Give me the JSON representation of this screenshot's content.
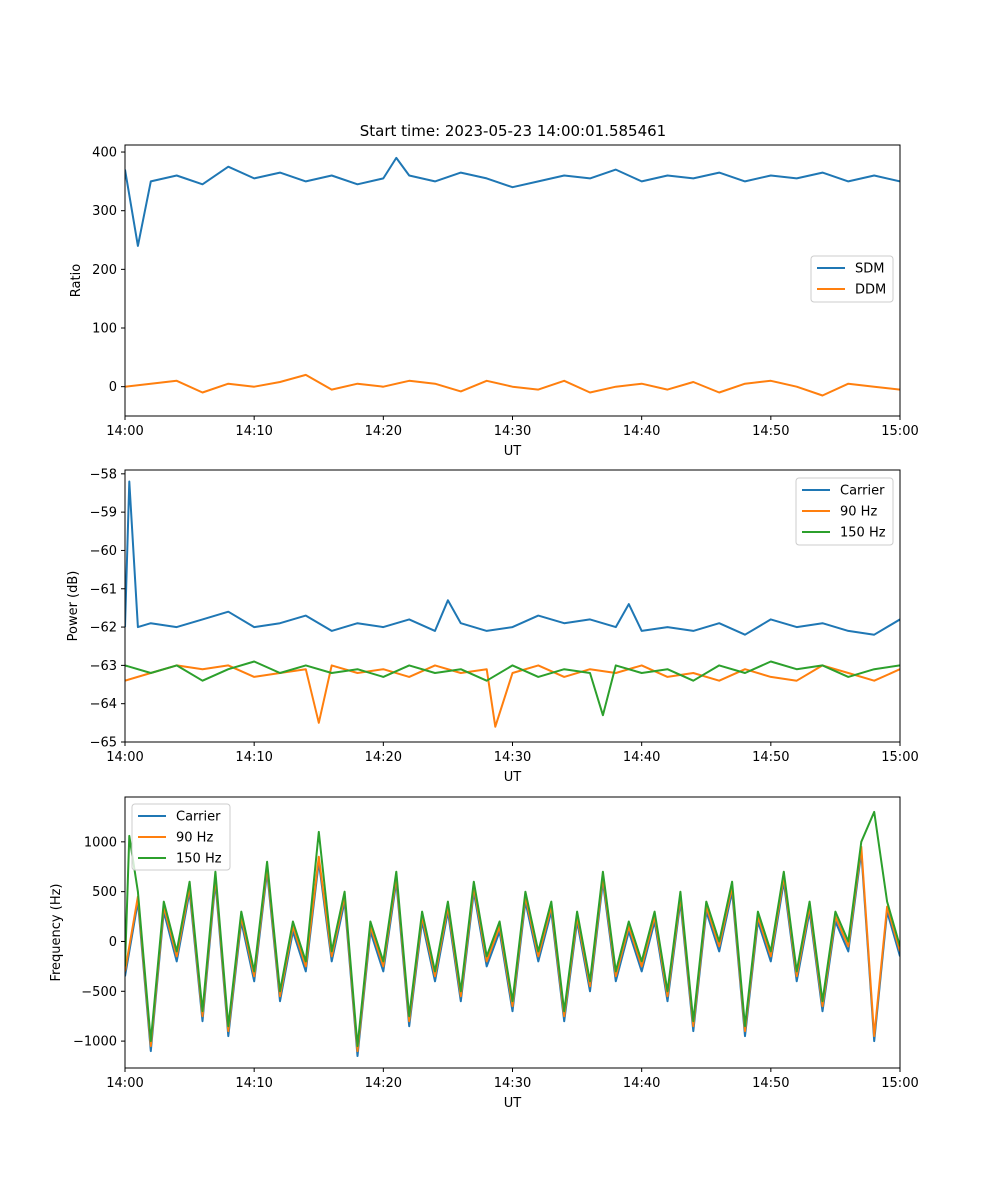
{
  "figure": {
    "title": "Start time: 2023-05-23 14:00:01.585461"
  },
  "colors": {
    "blue": "#1f77b4",
    "orange": "#ff7f0e",
    "green": "#2ca02c"
  },
  "chart_data": [
    {
      "type": "line",
      "title": "Start time: 2023-05-23 14:00:01.585461",
      "xlabel": "UT",
      "ylabel": "Ratio",
      "xlim": [
        "14:00",
        "15:00"
      ],
      "ylim": [
        -50,
        412
      ],
      "xticks": [
        "14:00",
        "14:10",
        "14:20",
        "14:30",
        "14:40",
        "14:50",
        "15:00"
      ],
      "yticks": [
        0,
        100,
        200,
        300,
        400
      ],
      "yticklabels": [
        "0",
        "100",
        "200",
        "300",
        "400"
      ],
      "legend": "center-right",
      "series": [
        {
          "name": "SDM",
          "color": "#1f77b4",
          "x": [
            "14:00",
            "14:01",
            "14:02",
            "14:04",
            "14:06",
            "14:08",
            "14:10",
            "14:12",
            "14:14",
            "14:16",
            "14:18",
            "14:20",
            "14:21",
            "14:22",
            "14:24",
            "14:26",
            "14:28",
            "14:30",
            "14:32",
            "14:34",
            "14:36",
            "14:38",
            "14:40",
            "14:42",
            "14:44",
            "14:46",
            "14:48",
            "14:50",
            "14:52",
            "14:54",
            "14:56",
            "14:58",
            "15:00"
          ],
          "values": [
            370,
            240,
            350,
            360,
            345,
            375,
            355,
            365,
            350,
            360,
            345,
            355,
            390,
            360,
            350,
            365,
            355,
            340,
            350,
            360,
            355,
            370,
            350,
            360,
            355,
            365,
            350,
            360,
            355,
            365,
            350,
            360,
            350
          ]
        },
        {
          "name": "DDM",
          "color": "#ff7f0e",
          "x": [
            "14:00",
            "14:02",
            "14:04",
            "14:06",
            "14:08",
            "14:10",
            "14:12",
            "14:14",
            "14:16",
            "14:18",
            "14:20",
            "14:22",
            "14:24",
            "14:26",
            "14:28",
            "14:30",
            "14:32",
            "14:34",
            "14:36",
            "14:38",
            "14:40",
            "14:42",
            "14:44",
            "14:46",
            "14:48",
            "14:50",
            "14:52",
            "14:54",
            "14:56",
            "14:58",
            "15:00"
          ],
          "values": [
            0,
            5,
            10,
            -10,
            5,
            0,
            8,
            20,
            -5,
            5,
            0,
            10,
            5,
            -8,
            10,
            0,
            -5,
            10,
            -10,
            0,
            5,
            -5,
            8,
            -10,
            5,
            10,
            0,
            -15,
            5,
            0,
            -5
          ]
        }
      ]
    },
    {
      "type": "line",
      "title": "",
      "xlabel": "UT",
      "ylabel": "Power (dB)",
      "xlim": [
        "14:00",
        "15:00"
      ],
      "ylim": [
        -65,
        -57.9
      ],
      "xticks": [
        "14:00",
        "14:10",
        "14:20",
        "14:30",
        "14:40",
        "14:50",
        "15:00"
      ],
      "yticks": [
        -65,
        -64,
        -63,
        -62,
        -61,
        -60,
        -59,
        -58
      ],
      "yticklabels": [
        "−65",
        "−64",
        "−63",
        "−62",
        "−61",
        "−60",
        "−59",
        "−58"
      ],
      "legend": "top-right",
      "series": [
        {
          "name": "Carrier",
          "color": "#1f77b4",
          "x": [
            "14:00",
            "14:00:20",
            "14:01",
            "14:02",
            "14:04",
            "14:06",
            "14:08",
            "14:10",
            "14:12",
            "14:14",
            "14:16",
            "14:18",
            "14:20",
            "14:22",
            "14:24",
            "14:25",
            "14:26",
            "14:28",
            "14:30",
            "14:32",
            "14:34",
            "14:36",
            "14:38",
            "14:39",
            "14:40",
            "14:42",
            "14:44",
            "14:46",
            "14:48",
            "14:50",
            "14:52",
            "14:54",
            "14:56",
            "14:58",
            "15:00"
          ],
          "values": [
            -62.0,
            -58.2,
            -62.0,
            -61.9,
            -62.0,
            -61.8,
            -61.6,
            -62.0,
            -61.9,
            -61.7,
            -62.1,
            -61.9,
            -62.0,
            -61.8,
            -62.1,
            -61.3,
            -61.9,
            -62.1,
            -62.0,
            -61.7,
            -61.9,
            -61.8,
            -62.0,
            -61.4,
            -62.1,
            -62.0,
            -62.1,
            -61.9,
            -62.2,
            -61.8,
            -62.0,
            -61.9,
            -62.1,
            -62.2,
            -61.8
          ]
        },
        {
          "name": "90 Hz",
          "color": "#ff7f0e",
          "x": [
            "14:00",
            "14:02",
            "14:04",
            "14:06",
            "14:08",
            "14:10",
            "14:12",
            "14:14",
            "14:15",
            "14:16",
            "14:18",
            "14:20",
            "14:22",
            "14:24",
            "14:26",
            "14:28",
            "14:28:40",
            "14:30",
            "14:32",
            "14:34",
            "14:36",
            "14:38",
            "14:40",
            "14:42",
            "14:44",
            "14:46",
            "14:48",
            "14:50",
            "14:52",
            "14:54",
            "14:56",
            "14:58",
            "15:00"
          ],
          "values": [
            -63.4,
            -63.2,
            -63.0,
            -63.1,
            -63.0,
            -63.3,
            -63.2,
            -63.1,
            -64.5,
            -63.0,
            -63.2,
            -63.1,
            -63.3,
            -63.0,
            -63.2,
            -63.1,
            -64.6,
            -63.2,
            -63.0,
            -63.3,
            -63.1,
            -63.2,
            -63.0,
            -63.3,
            -63.2,
            -63.4,
            -63.1,
            -63.3,
            -63.4,
            -63.0,
            -63.2,
            -63.4,
            -63.1
          ]
        },
        {
          "name": "150 Hz",
          "color": "#2ca02c",
          "x": [
            "14:00",
            "14:02",
            "14:04",
            "14:06",
            "14:08",
            "14:10",
            "14:12",
            "14:14",
            "14:16",
            "14:18",
            "14:20",
            "14:22",
            "14:24",
            "14:26",
            "14:28",
            "14:30",
            "14:32",
            "14:34",
            "14:36",
            "14:37",
            "14:38",
            "14:40",
            "14:42",
            "14:44",
            "14:46",
            "14:48",
            "14:50",
            "14:52",
            "14:54",
            "14:56",
            "14:58",
            "15:00"
          ],
          "values": [
            -63.0,
            -63.2,
            -63.0,
            -63.4,
            -63.1,
            -62.9,
            -63.2,
            -63.0,
            -63.2,
            -63.1,
            -63.3,
            -63.0,
            -63.2,
            -63.1,
            -63.4,
            -63.0,
            -63.3,
            -63.1,
            -63.2,
            -64.3,
            -63.0,
            -63.2,
            -63.1,
            -63.4,
            -63.0,
            -63.2,
            -62.9,
            -63.1,
            -63.0,
            -63.3,
            -63.1,
            -63.0
          ]
        }
      ]
    },
    {
      "type": "line",
      "title": "",
      "xlabel": "UT",
      "ylabel": "Frequency (Hz)",
      "xlim": [
        "14:00",
        "15:00"
      ],
      "ylim": [
        -1270,
        1450
      ],
      "xticks": [
        "14:00",
        "14:10",
        "14:20",
        "14:30",
        "14:40",
        "14:50",
        "15:00"
      ],
      "yticks": [
        -1000,
        -500,
        0,
        500,
        1000
      ],
      "yticklabels": [
        "−1000",
        "−500",
        "0",
        "500",
        "1000"
      ],
      "legend": "top-left",
      "series": [
        {
          "name": "Carrier",
          "color": "#1f77b4",
          "x": [
            "14:00",
            "14:01",
            "14:02",
            "14:03",
            "14:04",
            "14:05",
            "14:06",
            "14:07",
            "14:08",
            "14:09",
            "14:10",
            "14:11",
            "14:12",
            "14:13",
            "14:14",
            "14:15",
            "14:16",
            "14:17",
            "14:18",
            "14:19",
            "14:20",
            "14:21",
            "14:22",
            "14:23",
            "14:24",
            "14:25",
            "14:26",
            "14:27",
            "14:28",
            "14:29",
            "14:30",
            "14:31",
            "14:32",
            "14:33",
            "14:34",
            "14:35",
            "14:36",
            "14:37",
            "14:38",
            "14:39",
            "14:40",
            "14:41",
            "14:42",
            "14:43",
            "14:44",
            "14:45",
            "14:46",
            "14:47",
            "14:48",
            "14:49",
            "14:50",
            "14:51",
            "14:52",
            "14:53",
            "14:54",
            "14:55",
            "14:56",
            "14:57",
            "14:58",
            "14:59",
            "15:00"
          ],
          "values": [
            -350,
            400,
            -1100,
            300,
            -200,
            500,
            -800,
            600,
            -950,
            200,
            -400,
            700,
            -600,
            100,
            -300,
            800,
            -200,
            400,
            -1150,
            100,
            -300,
            600,
            -850,
            200,
            -400,
            300,
            -600,
            500,
            -250,
            100,
            -700,
            400,
            -200,
            300,
            -800,
            200,
            -500,
            600,
            -400,
            100,
            -300,
            200,
            -600,
            400,
            -900,
            300,
            -100,
            500,
            -950,
            200,
            -200,
            600,
            -400,
            300,
            -700,
            200,
            -100,
            900,
            -1000,
            300,
            -150
          ]
        },
        {
          "name": "90 Hz",
          "color": "#ff7f0e",
          "x": [
            "14:00",
            "14:01",
            "14:02",
            "14:03",
            "14:04",
            "14:05",
            "14:06",
            "14:07",
            "14:08",
            "14:09",
            "14:10",
            "14:11",
            "14:12",
            "14:13",
            "14:14",
            "14:15",
            "14:16",
            "14:17",
            "14:18",
            "14:19",
            "14:20",
            "14:21",
            "14:22",
            "14:23",
            "14:24",
            "14:25",
            "14:26",
            "14:27",
            "14:28",
            "14:29",
            "14:30",
            "14:31",
            "14:32",
            "14:33",
            "14:34",
            "14:35",
            "14:36",
            "14:37",
            "14:38",
            "14:39",
            "14:40",
            "14:41",
            "14:42",
            "14:43",
            "14:44",
            "14:45",
            "14:46",
            "14:47",
            "14:48",
            "14:49",
            "14:50",
            "14:51",
            "14:52",
            "14:53",
            "14:54",
            "14:55",
            "14:56",
            "14:57",
            "14:58",
            "14:59",
            "15:00"
          ],
          "values": [
            -300,
            450,
            -1050,
            350,
            -150,
            550,
            -750,
            650,
            -900,
            250,
            -350,
            750,
            -550,
            150,
            -250,
            850,
            -150,
            450,
            -1100,
            150,
            -250,
            650,
            -800,
            250,
            -350,
            350,
            -550,
            550,
            -200,
            150,
            -650,
            450,
            -150,
            350,
            -750,
            250,
            -450,
            650,
            -350,
            150,
            -250,
            250,
            -550,
            450,
            -850,
            350,
            -50,
            550,
            -900,
            250,
            -150,
            650,
            -350,
            350,
            -650,
            250,
            -50,
            950,
            -950,
            350,
            -100
          ]
        },
        {
          "name": "150 Hz",
          "color": "#2ca02c",
          "x": [
            "14:00",
            "14:00:20",
            "14:01",
            "14:02",
            "14:03",
            "14:04",
            "14:05",
            "14:06",
            "14:07",
            "14:08",
            "14:09",
            "14:10",
            "14:11",
            "14:12",
            "14:13",
            "14:14",
            "14:15",
            "14:16",
            "14:17",
            "14:18",
            "14:19",
            "14:20",
            "14:21",
            "14:22",
            "14:23",
            "14:24",
            "14:25",
            "14:26",
            "14:27",
            "14:28",
            "14:29",
            "14:30",
            "14:31",
            "14:32",
            "14:33",
            "14:34",
            "14:35",
            "14:36",
            "14:37",
            "14:38",
            "14:39",
            "14:40",
            "14:41",
            "14:42",
            "14:43",
            "14:44",
            "14:45",
            "14:46",
            "14:47",
            "14:48",
            "14:49",
            "14:50",
            "14:51",
            "14:52",
            "14:53",
            "14:54",
            "14:55",
            "14:56",
            "14:57",
            "14:58",
            "14:59",
            "15:00"
          ],
          "values": [
            -250,
            1060,
            500,
            -1000,
            400,
            -100,
            600,
            -700,
            700,
            -850,
            300,
            -300,
            800,
            -500,
            200,
            -200,
            1100,
            -100,
            500,
            -1050,
            200,
            -200,
            700,
            -750,
            300,
            -300,
            400,
            -500,
            600,
            -150,
            200,
            -600,
            500,
            -100,
            400,
            -700,
            300,
            -400,
            700,
            -300,
            200,
            -200,
            300,
            -500,
            500,
            -800,
            400,
            0,
            600,
            -850,
            300,
            -100,
            700,
            -300,
            400,
            -600,
            300,
            0,
            1000,
            1300,
            400,
            -50
          ]
        }
      ]
    }
  ]
}
